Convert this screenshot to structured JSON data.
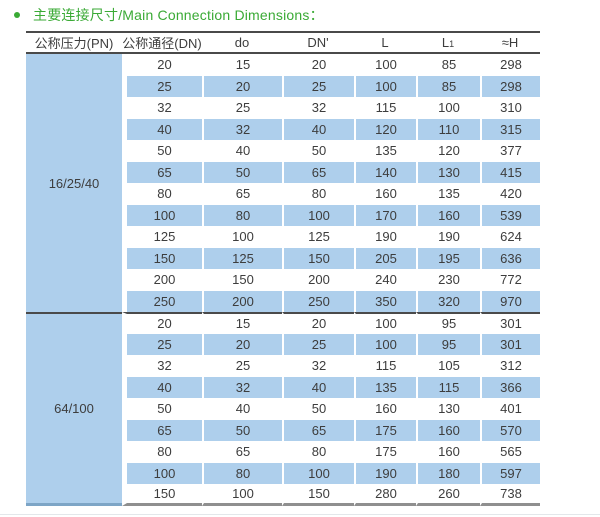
{
  "title": {
    "text": "主要连接尺寸/Main Connection Dimensions："
  },
  "colors": {
    "accent_green": "#3aaa35",
    "row_blue": "#aecfec",
    "rule_dark": "#4a4a4a",
    "rule_bottom_gray": "#8f8f8f"
  },
  "table": {
    "headers": [
      "公称压力(PN)",
      "公称通径(DN)",
      "do",
      "DN'",
      "L",
      {
        "base": "L",
        "sub": "1"
      },
      "≈H"
    ],
    "groups": [
      {
        "pressure": "16/25/40",
        "rows": [
          [
            20,
            15,
            20,
            100,
            85,
            298
          ],
          [
            25,
            20,
            25,
            100,
            85,
            298
          ],
          [
            32,
            25,
            32,
            115,
            100,
            310
          ],
          [
            40,
            32,
            40,
            120,
            110,
            315
          ],
          [
            50,
            40,
            50,
            135,
            120,
            377
          ],
          [
            65,
            50,
            65,
            140,
            130,
            415
          ],
          [
            80,
            65,
            80,
            160,
            135,
            420
          ],
          [
            100,
            80,
            100,
            170,
            160,
            539
          ],
          [
            125,
            100,
            125,
            190,
            190,
            624
          ],
          [
            150,
            125,
            150,
            205,
            195,
            636
          ],
          [
            200,
            150,
            200,
            240,
            230,
            772
          ],
          [
            250,
            200,
            250,
            350,
            320,
            970
          ]
        ]
      },
      {
        "pressure": "64/100",
        "rows": [
          [
            20,
            15,
            20,
            100,
            95,
            301
          ],
          [
            25,
            20,
            25,
            100,
            95,
            301
          ],
          [
            32,
            25,
            32,
            115,
            105,
            312
          ],
          [
            40,
            32,
            40,
            135,
            115,
            366
          ],
          [
            50,
            40,
            50,
            160,
            130,
            401
          ],
          [
            65,
            50,
            65,
            175,
            160,
            570
          ],
          [
            80,
            65,
            80,
            175,
            160,
            565
          ],
          [
            100,
            80,
            100,
            190,
            180,
            597
          ],
          [
            150,
            100,
            150,
            280,
            260,
            738
          ]
        ]
      }
    ]
  }
}
